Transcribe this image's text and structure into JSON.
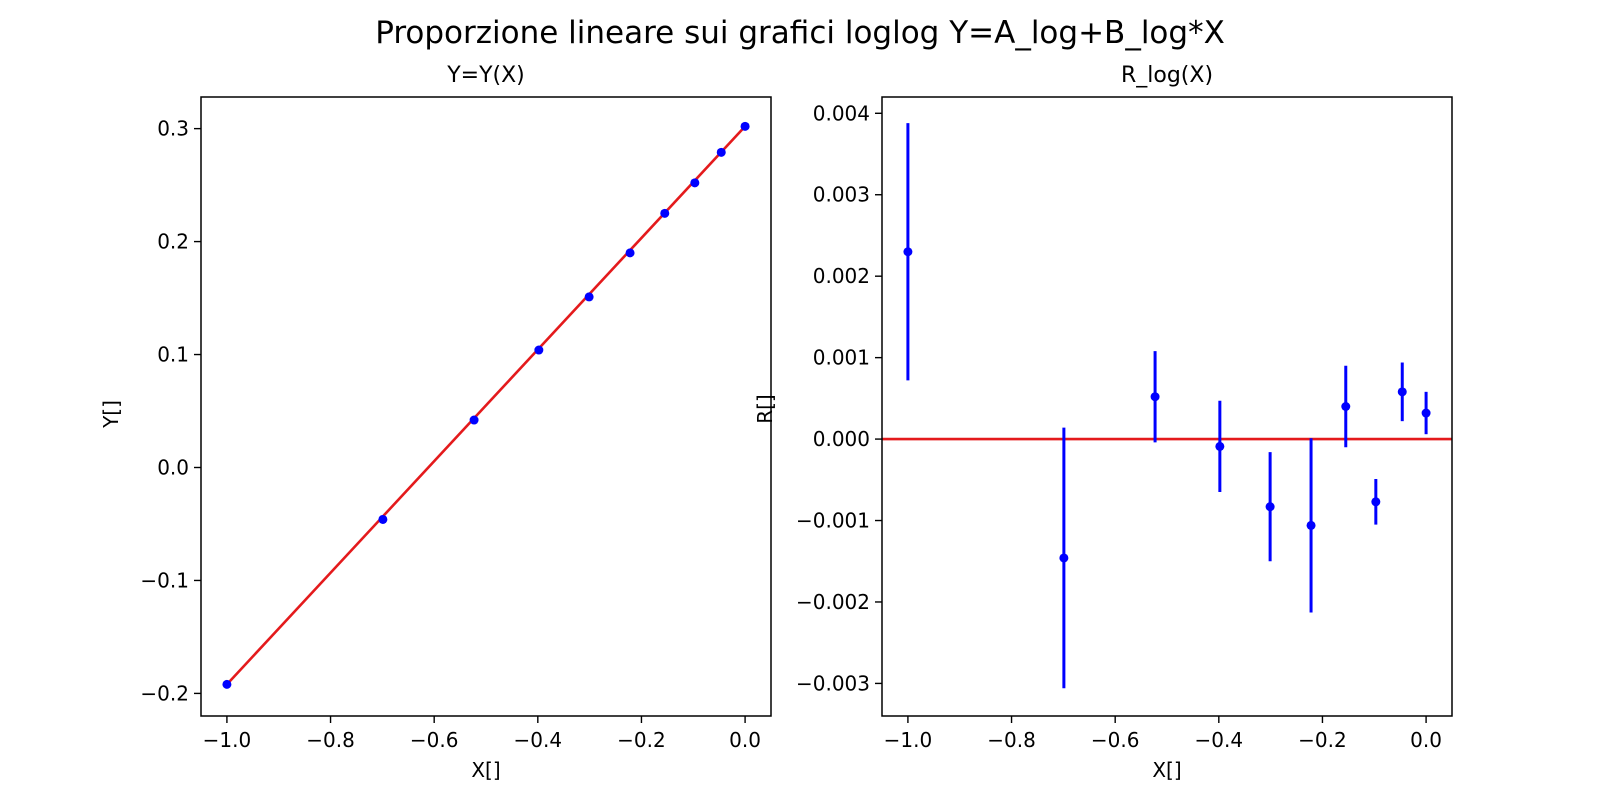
{
  "figure": {
    "suptitle": "Proporzione lineare sui grafici loglog Y=A_log+B_log*X"
  },
  "chart_data": [
    {
      "type": "scatter",
      "title": "Y=Y(X)",
      "xlabel": "X[]",
      "ylabel": "Y[]",
      "xlim": [
        -1.05,
        0.05
      ],
      "ylim": [
        -0.22,
        0.328
      ],
      "xticks": [
        -1.0,
        -0.8,
        -0.6,
        -0.4,
        -0.2,
        0.0
      ],
      "xtick_labels": [
        "−1.0",
        "−0.8",
        "−0.6",
        "−0.4",
        "−0.2",
        "0.0"
      ],
      "yticks": [
        -0.2,
        -0.1,
        0.0,
        0.1,
        0.2,
        0.3
      ],
      "ytick_labels": [
        "−0.2",
        "−0.1",
        "0.0",
        "0.1",
        "0.2",
        "0.3"
      ],
      "grid": false,
      "series": [
        {
          "kind": "points",
          "color": "#0000ff",
          "x": [
            -1.0,
            -0.699,
            -0.523,
            -0.398,
            -0.301,
            -0.222,
            -0.155,
            -0.097,
            -0.046,
            0.0
          ],
          "y": [
            -0.192,
            -0.046,
            0.042,
            0.104,
            0.151,
            0.19,
            0.225,
            0.252,
            0.279,
            0.302
          ]
        },
        {
          "kind": "line",
          "color": "#e41a1c",
          "x": [
            -1.0,
            0.0
          ],
          "y": [
            -0.192,
            0.302
          ]
        }
      ]
    },
    {
      "type": "scatter",
      "title": "R_log(X)",
      "xlabel": "X[]",
      "ylabel": "R[]",
      "xlim": [
        -1.05,
        0.05
      ],
      "ylim": [
        -0.0034,
        0.0042
      ],
      "xticks": [
        -1.0,
        -0.8,
        -0.6,
        -0.4,
        -0.2,
        0.0
      ],
      "xtick_labels": [
        "−1.0",
        "−0.8",
        "−0.6",
        "−0.4",
        "−0.2",
        "0.0"
      ],
      "yticks": [
        -0.003,
        -0.002,
        -0.001,
        0.0,
        0.001,
        0.002,
        0.003,
        0.004
      ],
      "ytick_labels": [
        "−0.003",
        "−0.002",
        "−0.001",
        "0.000",
        "0.001",
        "0.002",
        "0.003",
        "0.004"
      ],
      "grid": false,
      "series": [
        {
          "kind": "errorbar",
          "color": "#0000ff",
          "x": [
            -1.0,
            -0.699,
            -0.523,
            -0.398,
            -0.301,
            -0.222,
            -0.155,
            -0.097,
            -0.046,
            0.0
          ],
          "y": [
            0.0023,
            -0.00146,
            0.00052,
            -9e-05,
            -0.00083,
            -0.00106,
            0.0004,
            -0.00077,
            0.00058,
            0.00032
          ],
          "yerr": [
            0.00158,
            0.0016,
            0.00056,
            0.00056,
            0.00067,
            0.00107,
            0.0005,
            0.00028,
            0.00036,
            0.00026
          ]
        },
        {
          "kind": "hline",
          "color": "#e41a1c",
          "y": 0.0
        }
      ]
    }
  ]
}
